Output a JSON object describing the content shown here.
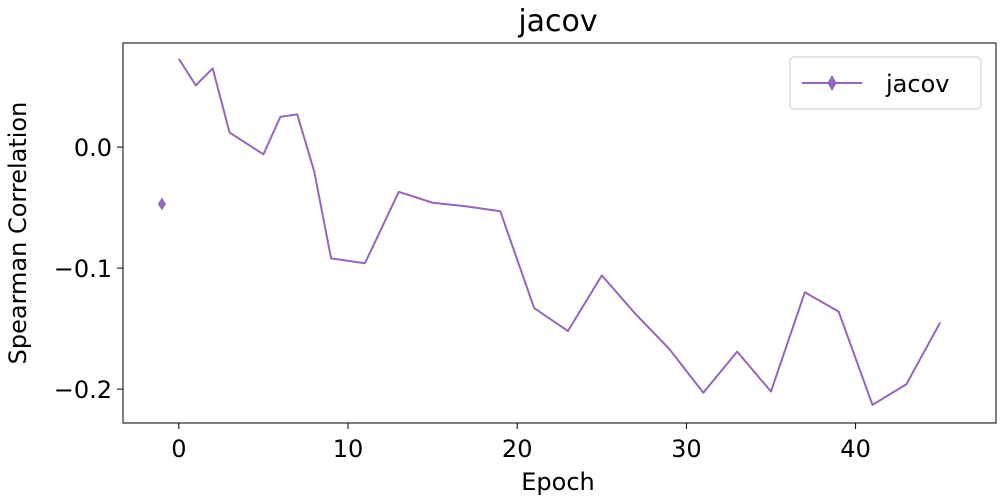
{
  "chart_data": {
    "type": "line",
    "title": "jacov",
    "xlabel": "Epoch",
    "ylabel": "Spearman Correlation",
    "xlim": [
      -3.3,
      48.3
    ],
    "ylim": [
      -0.228,
      0.086
    ],
    "xticks": [
      0,
      10,
      20,
      30,
      40
    ],
    "xtick_labels": [
      "0",
      "10",
      "20",
      "30",
      "40"
    ],
    "yticks": [
      0.0,
      -0.1,
      -0.2
    ],
    "ytick_labels": [
      "0.0",
      "−0.1",
      "−0.2"
    ],
    "grid": false,
    "legend_position": "top-right",
    "series": [
      {
        "name": "jacov",
        "color": "#9467bd",
        "marker": "thin-diamond",
        "x": [
          -1,
          0,
          1,
          2,
          3,
          5,
          6,
          7,
          8,
          9,
          11,
          13,
          15,
          17,
          19,
          21,
          23,
          25,
          27,
          29,
          31,
          33,
          35,
          37,
          39,
          41,
          43,
          45
        ],
        "y": [
          -0.047,
          0.073,
          0.051,
          0.065,
          0.012,
          -0.006,
          0.025,
          0.027,
          -0.02,
          -0.092,
          -0.096,
          -0.037,
          -0.046,
          -0.049,
          -0.053,
          -0.133,
          -0.152,
          -0.106,
          -0.138,
          -0.167,
          -0.203,
          -0.169,
          -0.202,
          -0.12,
          -0.136,
          -0.213,
          -0.196,
          -0.145
        ]
      }
    ]
  }
}
